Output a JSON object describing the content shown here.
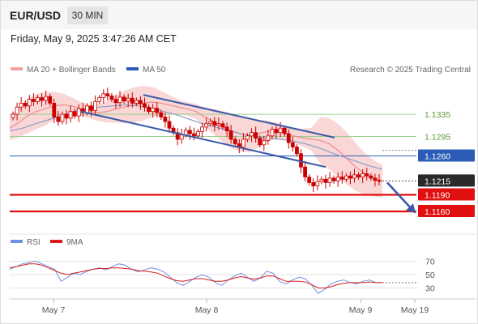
{
  "header": {
    "symbol": "EUR/USD",
    "timeframe": "30 MIN",
    "timestamp": "Friday, May 9, 2025 3:47:26 AM CET"
  },
  "legend": {
    "ma20_bb": "MA 20 + Bollinger Bands",
    "ma50": "MA 50",
    "credit": "Research © 2025 Trading Central",
    "rsi": "RSI",
    "rsi_ma": "9MA"
  },
  "colors": {
    "candle": "#cc0000",
    "bollinger_fill": "#f7c9c9",
    "ma20": "#ee8a8a",
    "ma50": "#8c9ec8",
    "trendline": "#3a5aa8",
    "resistance_green": "#9bd08e",
    "pivot_blue": "#2b5cb8",
    "support_red": "#e01010",
    "current_box": "#2a2a2a",
    "rsi_line": "#7090e0",
    "rsi_ma_line": "#d81c1c"
  },
  "chart_data": {
    "type": "candlestick",
    "x_ticks": [
      "May 7",
      "May 8",
      "May 9",
      "May 19"
    ],
    "y_range": [
      1.1125,
      1.1395
    ],
    "levels": [
      {
        "label": "1.1335",
        "value": 1.1335,
        "kind": "resistance"
      },
      {
        "label": "1.1295",
        "value": 1.1295,
        "kind": "resistance"
      },
      {
        "label": "1.1260",
        "value": 1.126,
        "kind": "pivot"
      },
      {
        "label": "1.1215",
        "value": 1.1215,
        "kind": "current"
      },
      {
        "label": "1.1190",
        "value": 1.119,
        "kind": "support"
      },
      {
        "label": "1.1160",
        "value": 1.116,
        "kind": "support"
      }
    ],
    "closes": [
      1.1335,
      1.1348,
      1.1355,
      1.135,
      1.1362,
      1.1358,
      1.1365,
      1.136,
      1.1367,
      1.1355,
      1.133,
      1.1322,
      1.1335,
      1.1328,
      1.134,
      1.1332,
      1.1345,
      1.1338,
      1.135,
      1.1342,
      1.1358,
      1.1365,
      1.1372,
      1.1368,
      1.1362,
      1.1356,
      1.1366,
      1.1359,
      1.1364,
      1.1355,
      1.136,
      1.1354,
      1.1348,
      1.134,
      1.1346,
      1.1338,
      1.133,
      1.1322,
      1.131,
      1.1302,
      1.129,
      1.1298,
      1.1306,
      1.13,
      1.1296,
      1.1304,
      1.1312,
      1.1318,
      1.1322,
      1.1315,
      1.1318,
      1.1312,
      1.1305,
      1.129,
      1.1282,
      1.1276,
      1.129,
      1.1296,
      1.1302,
      1.1292,
      1.128,
      1.1288,
      1.1296,
      1.1308,
      1.1302,
      1.131,
      1.13,
      1.1284,
      1.1276,
      1.1264,
      1.124,
      1.1222,
      1.1212,
      1.1206,
      1.1214,
      1.1218,
      1.1212,
      1.122,
      1.1215,
      1.1222,
      1.1218,
      1.1224,
      1.122,
      1.1226,
      1.1222,
      1.1228,
      1.1224,
      1.122,
      1.1216,
      1.1215
    ],
    "ma20": [
      1.131,
      1.132,
      1.1332,
      1.134,
      1.1345,
      1.135,
      1.1352,
      1.135,
      1.1345,
      1.134,
      1.1338,
      1.134,
      1.1345,
      1.1348,
      1.1352,
      1.1355,
      1.1357,
      1.1355,
      1.1352,
      1.1348,
      1.1345,
      1.134,
      1.133,
      1.1322,
      1.1313,
      1.1305,
      1.13,
      1.1296,
      1.13,
      1.1304,
      1.1306,
      1.1302,
      1.1296,
      1.1293,
      1.129,
      1.1288,
      1.1282,
      1.127,
      1.1255,
      1.124,
      1.1228,
      1.122,
      1.1214
    ],
    "ma50": [
      1.1305,
      1.131,
      1.1318,
      1.1325,
      1.1333,
      1.134,
      1.1345,
      1.1348,
      1.135,
      1.1352,
      1.135,
      1.1346,
      1.134,
      1.1334,
      1.1326,
      1.1318,
      1.1312,
      1.1306,
      1.13,
      1.1296,
      1.1292,
      1.129,
      1.1287,
      1.1282,
      1.1275,
      1.1266,
      1.1258,
      1.125,
      1.1242,
      1.1236
    ],
    "trendline_upper": [
      [
        1.137,
        0
      ],
      [
        1.1293,
        1
      ]
    ],
    "trendline_lower": [
      [
        1.134,
        0
      ],
      [
        1.124,
        1
      ]
    ],
    "forecast_target": 1.116,
    "rsi": {
      "ticks": [
        "70",
        "50",
        "30"
      ],
      "range": [
        15,
        85
      ],
      "values": [
        58,
        62,
        66,
        68,
        70,
        66,
        62,
        58,
        40,
        46,
        52,
        50,
        55,
        58,
        60,
        57,
        62,
        66,
        64,
        58,
        54,
        57,
        60,
        58,
        54,
        46,
        38,
        34,
        40,
        46,
        50,
        46,
        38,
        34,
        42,
        48,
        52,
        46,
        40,
        45,
        55,
        52,
        40,
        36,
        42,
        46,
        44,
        34,
        22,
        28,
        36,
        40,
        42,
        38,
        36,
        40,
        42,
        38,
        38
      ],
      "ma9": [
        60,
        62,
        64,
        66,
        66,
        64,
        60,
        56,
        52,
        50,
        52,
        54,
        56,
        58,
        59,
        59,
        60,
        60,
        59,
        58,
        56,
        55,
        54,
        52,
        48,
        44,
        41,
        40,
        42,
        44,
        44,
        42,
        40,
        40,
        42,
        45,
        47,
        45,
        43,
        45,
        48,
        48,
        44,
        40,
        40,
        40,
        39,
        35,
        30,
        30,
        32,
        35,
        37,
        38,
        38,
        38,
        39,
        38,
        38
      ]
    }
  }
}
